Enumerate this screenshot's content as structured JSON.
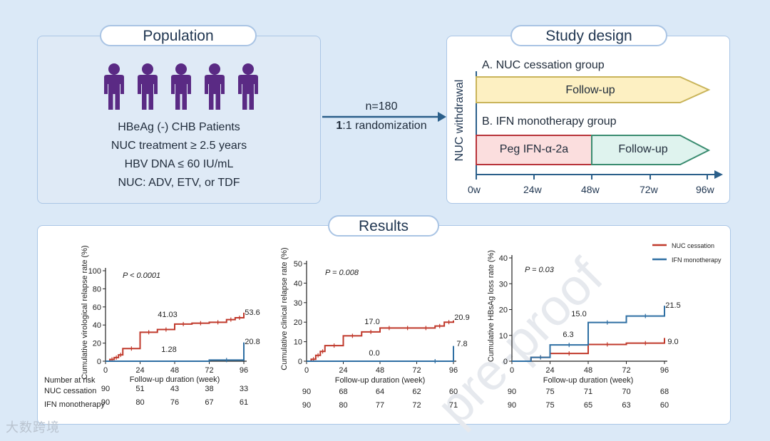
{
  "population": {
    "title": "Population",
    "lines": [
      "HBeAg (-) CHB Patients",
      "NUC treatment ≥ 2.5 years",
      "HBV DNA ≤ 60 IU/mL",
      "NUC: ADV, ETV, or TDF"
    ],
    "icon": "person-icon",
    "icon_color": "#5a2a84"
  },
  "arrow": {
    "n_label": "n=180",
    "randomization_prefix": "1",
    "randomization_rest": ":1 randomization",
    "color": "#2b5f8a"
  },
  "design": {
    "title": "Study design",
    "vertical_label": "NUC withdrawal",
    "group_a_label": "A. NUC cessation group",
    "group_a_band": "Follow-up",
    "group_b_label": "B. IFN monotherapy group",
    "group_b_band_1": "Peg IFN-α-2a",
    "group_b_band_2": "Follow-up",
    "ticks": [
      "0w",
      "24w",
      "48w",
      "72w",
      "96w"
    ],
    "colors": {
      "band_a": "#fdf0c2",
      "band_b1": "#fbdede",
      "band_b2": "#dff3ee",
      "red": "#b8333a",
      "teal": "#3a8c70",
      "olive": "#c9b45a"
    }
  },
  "results": {
    "title": "Results",
    "legend": [
      {
        "name": "NUC cessation",
        "color": "#c0392b"
      },
      {
        "name": "IFN monotherapy",
        "color": "#2e6fa3"
      }
    ],
    "risk_header": "Number at risk",
    "risk_labels": [
      "NUC cessation",
      "IFN monotherapy"
    ]
  },
  "chart_data": [
    {
      "type": "line",
      "ylabel": "Cumulative virological relapse rate (%)",
      "xlabel": "Follow-up duration (week)",
      "ylim": [
        0,
        100
      ],
      "yticks": [
        "0",
        "20",
        "40",
        "60",
        "80",
        "100"
      ],
      "xticks": [
        "0",
        "24",
        "48",
        "72",
        "96"
      ],
      "annotation": "P < 0.0001",
      "series": [
        {
          "x": [
            0,
            3,
            6,
            9,
            12,
            24,
            36,
            48,
            60,
            72,
            84,
            90,
            96
          ],
          "y": [
            0,
            2,
            4,
            7,
            14,
            32,
            35,
            41,
            42,
            43,
            46,
            48,
            53.6
          ]
        },
        {
          "x": [
            0,
            72,
            96
          ],
          "y": [
            0,
            1.28,
            20.8
          ]
        }
      ],
      "labels": [
        "41.03",
        "1.28",
        "53.6",
        "20.8"
      ],
      "risk_rows": [
        [
          "90",
          "51",
          "43",
          "38",
          "33"
        ],
        [
          "90",
          "80",
          "76",
          "67",
          "61"
        ]
      ]
    },
    {
      "type": "line",
      "ylabel": "Cumulative clinical relapse rate (%)",
      "xlabel": "Follow-up duration (week)",
      "ylim": [
        0,
        50
      ],
      "yticks": [
        "0",
        "10",
        "20",
        "30",
        "40",
        "50"
      ],
      "xticks": [
        "0",
        "24",
        "48",
        "72",
        "96"
      ],
      "annotation": "P = 0.008",
      "series": [
        {
          "x": [
            0,
            3,
            6,
            9,
            12,
            24,
            36,
            48,
            60,
            72,
            84,
            90,
            96
          ],
          "y": [
            0,
            1,
            3,
            5,
            8,
            13,
            15,
            17,
            17,
            17,
            18,
            20,
            20.9
          ]
        },
        {
          "x": [
            0,
            72,
            96
          ],
          "y": [
            0,
            0,
            7.8
          ]
        }
      ],
      "labels": [
        "17.0",
        "0.0",
        "20.9",
        "7.8"
      ],
      "risk_rows": [
        [
          "90",
          "68",
          "64",
          "62",
          "60"
        ],
        [
          "90",
          "80",
          "77",
          "72",
          "71"
        ]
      ]
    },
    {
      "type": "line",
      "ylabel": "Cumulative HBsAg loss rate (%)",
      "xlabel": "Follow-up duration (week)",
      "ylim": [
        0,
        40
      ],
      "yticks": [
        "0",
        "10",
        "20",
        "30",
        "40"
      ],
      "xticks": [
        "0",
        "24",
        "48",
        "72",
        "96"
      ],
      "annotation": "P = 0.03",
      "series": [
        {
          "x": [
            0,
            12,
            24,
            48,
            72,
            96
          ],
          "y": [
            0,
            1.5,
            3,
            6.5,
            7,
            9.0
          ]
        },
        {
          "x": [
            0,
            12,
            24,
            48,
            72,
            96
          ],
          "y": [
            0,
            1.5,
            6.3,
            15.0,
            17.5,
            21.5
          ]
        }
      ],
      "labels": [
        "15.0",
        "6.3",
        "21.5",
        "9.0"
      ],
      "risk_rows": [
        [
          "90",
          "75",
          "71",
          "70",
          "68"
        ],
        [
          "90",
          "75",
          "65",
          "63",
          "60"
        ]
      ]
    }
  ],
  "watermark": "大数跨境",
  "proof_watermark": "pre-proof"
}
